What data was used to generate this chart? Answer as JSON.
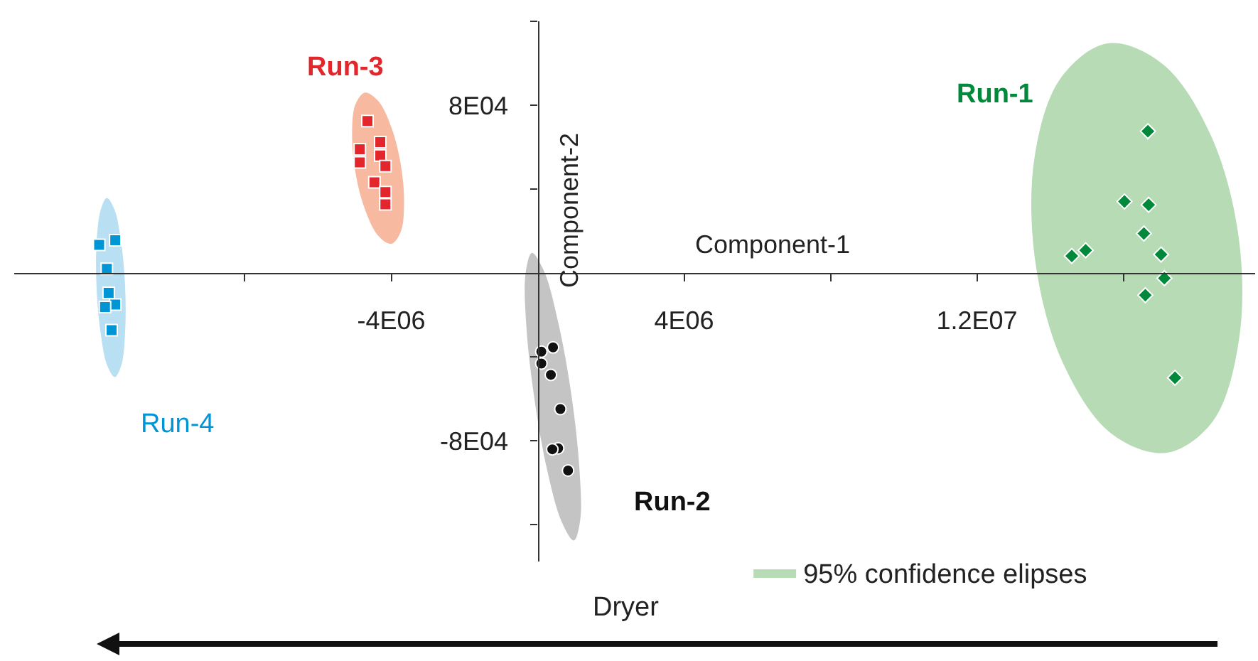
{
  "chart_data": {
    "type": "scatter",
    "xlabel": "Component-1",
    "ylabel": "Component-2",
    "xlim": [
      -14300000.0,
      19600000.0
    ],
    "ylim": [
      -137600.0,
      120000.0
    ],
    "xticks": [
      {
        "value": -8000000.0,
        "label": null
      },
      {
        "value": -4000000.0,
        "label": "-4E06"
      },
      {
        "value": 4000000.0,
        "label": "4E06"
      },
      {
        "value": 8000000.0,
        "label": null
      },
      {
        "value": 12000000.0,
        "label": "1.2E07"
      },
      {
        "value": 16000000.0,
        "label": null
      }
    ],
    "yticks": [
      {
        "value": -120000.0,
        "label": null
      },
      {
        "value": -80000.0,
        "label": "-8E04"
      },
      {
        "value": -40000.0,
        "label": null
      },
      {
        "value": 40000.0,
        "label": null
      },
      {
        "value": 80000.0,
        "label": "8E04"
      },
      {
        "value": 120000.0,
        "label": null
      }
    ],
    "legend": "bottom right",
    "annotations": [
      "Dryer"
    ],
    "series": [
      {
        "name": "95% confidence elipses",
        "type": "area",
        "color": "#b7dbb5",
        "x": [
          17160000.0,
          18440000.0,
          19160000.0,
          19140000.0,
          18370000.0,
          17070000.0,
          15580000.0,
          14290000.0,
          13570000.0,
          13600000.0,
          14360000.0,
          15670000.0
        ],
        "values": [
          -85800,
          -70800,
          -31600,
          18300,
          66400,
          99700,
          109500,
          93000,
          54600,
          4700,
          -43400,
          -76600
        ]
      },
      {
        "type": "area",
        "color": "#c4c4c4",
        "x": [
          988000,
          1163000,
          1135000,
          918000,
          564000,
          175000,
          -156000,
          -331000,
          -307000,
          -86000,
          264000,
          661000
        ],
        "values": [
          -127600,
          -117700,
          -92200,
          -57800,
          -23800,
          800,
          9600,
          -400,
          -25900,
          -60400,
          -94400,
          -118900
        ]
      },
      {
        "type": "area",
        "color": "#f7b9a0",
        "x": [
          -4000000.0,
          -3740000.0,
          -3650000.0,
          -3740000.0,
          -4000000.0,
          -4360000.0,
          -4720000.0,
          -4980000.0,
          -5070000.0,
          -4980000.0,
          -4720000.0,
          -4360000.0
        ],
        "values": [
          13900,
          19700,
          33500,
          51800,
          69600,
          82100,
          86000,
          80300,
          66400,
          48100,
          30400,
          17800
        ]
      },
      {
        "type": "area",
        "color": "#b9dff2",
        "x": [
          -11550000.0,
          -11370000.0,
          -11270000.0,
          -11270000.0,
          -11380000.0,
          -11560000.0,
          -11770000.0,
          -11940000.0,
          -12050000.0,
          -12050000.0,
          -11940000.0,
          -11760000.0
        ],
        "values": [
          -49600,
          -43800,
          -28000,
          -6600,
          14700,
          30200,
          35800,
          29900,
          14200,
          -7200,
          -28500,
          -44100
        ]
      },
      {
        "name": "Run-1",
        "marker": "diamond",
        "color": "#00893a",
        "x": [
          16670000.0,
          16030000.0,
          16690000.0,
          16560000.0,
          17030000.0,
          14970000.0,
          14590000.0,
          17120000.0,
          16600000.0,
          17410000.0
        ],
        "values": [
          67600,
          34100,
          32500,
          18800,
          8800,
          10800,
          8100,
          -2500,
          -10600,
          -50000
        ]
      },
      {
        "name": "Run-2",
        "marker": "circle",
        "color": "#111111",
        "x": [
          420000,
          100000,
          100000,
          360000,
          620000,
          560000,
          400000,
          830000
        ],
        "values": [
          -35500,
          -37500,
          -43200,
          -48600,
          -64900,
          -83600,
          -84100,
          -94200
        ]
      },
      {
        "name": "Run-3",
        "marker": "square",
        "color": "#e3262b",
        "x": [
          -4650000.0,
          -4300000.0,
          -4860000.0,
          -4300000.0,
          -4860000.0,
          -4160000.0,
          -4460000.0,
          -4160000.0,
          -4160000.0
        ],
        "values": [
          72500,
          62400,
          59000,
          56000,
          52700,
          50900,
          43200,
          38600,
          32700
        ]
      },
      {
        "name": "Run-4",
        "marker": "square",
        "color": "#0095d5",
        "x": [
          -11980000.0,
          -11540000.0,
          -11770000.0,
          -11720000.0,
          -11540000.0,
          -11820000.0,
          -11640000.0
        ],
        "values": [
          13400,
          15600,
          2000,
          -9500,
          -15100,
          -16300,
          -27300
        ]
      }
    ]
  }
}
